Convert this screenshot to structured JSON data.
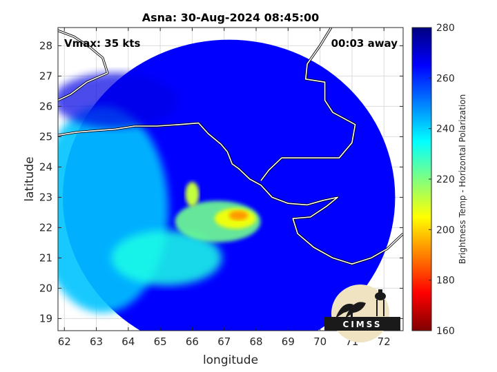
{
  "chart_data": {
    "type": "heatmap",
    "title": "Asna: 30-Aug-2024 08:45:00",
    "xlabel": "longitude",
    "ylabel": "latitude",
    "xlim": [
      61.8,
      72.6
    ],
    "ylim": [
      18.6,
      28.6
    ],
    "xticks": [
      62,
      63,
      64,
      65,
      66,
      67,
      68,
      69,
      70,
      71,
      72
    ],
    "yticks": [
      19,
      20,
      21,
      22,
      23,
      24,
      25,
      26,
      27,
      28
    ],
    "grid": true,
    "annotations": {
      "left": "Vmax: 35 kts",
      "right": "00:03 away"
    },
    "colorbar": {
      "label": "Brightness Temp - Horizontal Polarization",
      "range": [
        160,
        280
      ],
      "ticks": [
        160,
        180,
        200,
        220,
        240,
        260,
        280
      ]
    },
    "swath": {
      "center": [
        67.15,
        23.0
      ],
      "radius_deg": 5.2
    },
    "features": [
      {
        "name": "storm-core",
        "lon": 67.3,
        "lat": 22.3,
        "min_temp": 193
      },
      {
        "name": "north-band",
        "lon": 66.0,
        "lat": 23.2,
        "min_temp": 205
      },
      {
        "name": "southern-spiral",
        "lon": 65.5,
        "lat": 21.2,
        "min_temp": 228
      },
      {
        "name": "western-ocean",
        "lon": 62.8,
        "lat": 23.3,
        "min_temp": 238
      }
    ],
    "coastline_lonlat": [
      [
        61.8,
        25.05
      ],
      [
        62.4,
        25.15
      ],
      [
        63.0,
        25.2
      ],
      [
        63.6,
        25.25
      ],
      [
        64.2,
        25.35
      ],
      [
        64.9,
        25.35
      ],
      [
        65.6,
        25.4
      ],
      [
        66.2,
        25.45
      ],
      [
        66.5,
        25.1
      ],
      [
        66.9,
        24.75
      ],
      [
        67.1,
        24.5
      ],
      [
        67.25,
        24.1
      ],
      [
        67.45,
        23.95
      ],
      [
        67.8,
        23.6
      ],
      [
        68.15,
        23.4
      ],
      [
        68.5,
        23.0
      ],
      [
        69.0,
        22.8
      ],
      [
        69.6,
        22.75
      ],
      [
        70.1,
        22.9
      ],
      [
        70.55,
        23.0
      ],
      [
        70.2,
        22.7
      ],
      [
        69.7,
        22.35
      ],
      [
        69.15,
        22.3
      ],
      [
        69.3,
        21.8
      ],
      [
        69.8,
        21.35
      ],
      [
        70.4,
        21.0
      ],
      [
        71.0,
        20.8
      ],
      [
        71.6,
        21.0
      ],
      [
        72.1,
        21.3
      ],
      [
        72.4,
        21.6
      ],
      [
        72.6,
        21.8
      ]
    ],
    "border_lonlat": [
      [
        61.8,
        28.5
      ],
      [
        62.3,
        28.3
      ],
      [
        62.8,
        27.95
      ],
      [
        63.2,
        27.6
      ],
      [
        63.35,
        27.1
      ],
      [
        62.7,
        26.8
      ],
      [
        62.2,
        26.4
      ],
      [
        61.8,
        26.2
      ]
    ],
    "border2_lonlat": [
      [
        70.35,
        28.6
      ],
      [
        70.0,
        28.0
      ],
      [
        69.6,
        27.4
      ],
      [
        69.55,
        26.9
      ],
      [
        70.15,
        26.8
      ],
      [
        70.15,
        26.2
      ],
      [
        70.4,
        25.8
      ],
      [
        71.1,
        25.4
      ],
      [
        71.0,
        24.8
      ],
      [
        70.6,
        24.3
      ],
      [
        69.8,
        24.3
      ],
      [
        68.8,
        24.3
      ],
      [
        68.4,
        23.9
      ],
      [
        68.15,
        23.55
      ]
    ]
  },
  "logo": {
    "text": "CIMSS"
  }
}
